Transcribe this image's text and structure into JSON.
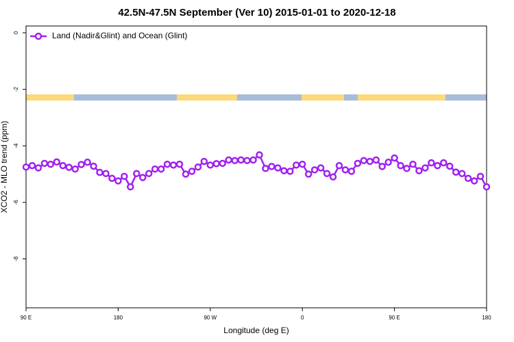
{
  "chart_data": {
    "type": "line",
    "title": "42.5N-47.5N September (Ver 10)   2015-01-01 to 2020-12-18",
    "xlabel": "Longitude (deg E)",
    "ylabel": "XCO2 - MLO trend (ppm)",
    "x": [
      90,
      96,
      102,
      108,
      114,
      120,
      126,
      132,
      138,
      144,
      150,
      156,
      162,
      168,
      174,
      180,
      186,
      192,
      198,
      204,
      210,
      216,
      222,
      228,
      234,
      240,
      246,
      252,
      258,
      264,
      270,
      276,
      282,
      288,
      294,
      300,
      306,
      312,
      318,
      324,
      330,
      336,
      342,
      348,
      354,
      360,
      366,
      372,
      378,
      384,
      390,
      396,
      402,
      408,
      414,
      420,
      426,
      432,
      438,
      444,
      450,
      456,
      462,
      468,
      474,
      480,
      486,
      492,
      498,
      504,
      510,
      516,
      522,
      528,
      534,
      540
    ],
    "series": [
      {
        "name": "Land (Nadir&Glint) and Ocean (Glint)",
        "color": "#a020f0",
        "values": [
          -4.75,
          -4.7,
          -4.78,
          -4.62,
          -4.65,
          -4.57,
          -4.7,
          -4.76,
          -4.82,
          -4.66,
          -4.58,
          -4.72,
          -4.94,
          -4.98,
          -5.15,
          -5.24,
          -5.08,
          -5.45,
          -4.98,
          -5.12,
          -4.98,
          -4.82,
          -4.82,
          -4.65,
          -4.68,
          -4.65,
          -5.0,
          -4.9,
          -4.75,
          -4.55,
          -4.68,
          -4.63,
          -4.62,
          -4.5,
          -4.52,
          -4.5,
          -4.52,
          -4.5,
          -4.32,
          -4.8,
          -4.73,
          -4.78,
          -4.88,
          -4.9,
          -4.68,
          -4.65,
          -5.0,
          -4.85,
          -4.78,
          -4.98,
          -5.1,
          -4.7,
          -4.85,
          -4.9,
          -4.62,
          -4.52,
          -4.55,
          -4.5,
          -4.73,
          -4.58,
          -4.43,
          -4.7,
          -4.8,
          -4.65,
          -4.88,
          -4.78,
          -4.6,
          -4.7,
          -4.6,
          -4.72,
          -4.93,
          -4.98,
          -5.15,
          -5.24,
          -5.08,
          -5.45
        ]
      }
    ],
    "xlim": [
      90,
      540
    ],
    "xticks": [
      {
        "value": 90,
        "label": "90 E"
      },
      {
        "value": 180,
        "label": "180"
      },
      {
        "value": 270,
        "label": "90 W"
      },
      {
        "value": 360,
        "label": "0"
      },
      {
        "value": 450,
        "label": "90 E"
      },
      {
        "value": 540,
        "label": "180"
      }
    ],
    "ylim": [
      -9.73,
      0.24
    ],
    "yticks": [
      0,
      -2,
      -4,
      -6,
      -8
    ],
    "legend": "top-left"
  }
}
